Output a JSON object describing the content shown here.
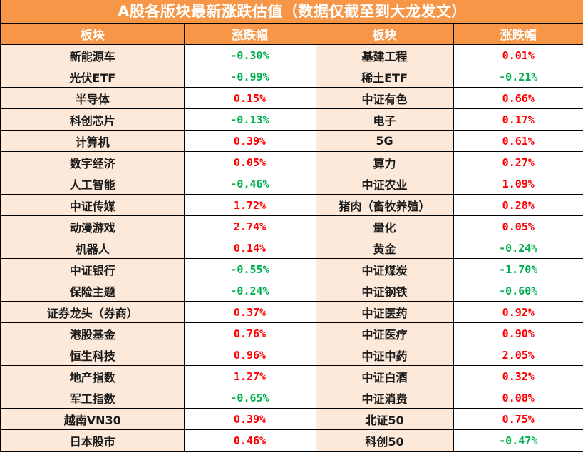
{
  "title": "A股各版块最新涨跌估值（数据仅截至到大龙发文）",
  "headers": [
    "板块",
    "涨跌幅",
    "板块",
    "涨跌幅"
  ],
  "colors": {
    "header_bg": "#f79646",
    "name_bg": "#fde9d9",
    "up": "#ff0000",
    "down": "#00b050"
  },
  "rows": [
    {
      "left_name": "新能源车",
      "left_value": "-0.30%",
      "left_dir": "down",
      "right_name": "基建工程",
      "right_value": "0.01%",
      "right_dir": "up"
    },
    {
      "left_name": "光伏ETF",
      "left_value": "-0.99%",
      "left_dir": "down",
      "right_name": "稀土ETF",
      "right_value": "-0.21%",
      "right_dir": "down"
    },
    {
      "left_name": "半导体",
      "left_value": "0.15%",
      "left_dir": "up",
      "right_name": "中证有色",
      "right_value": "0.66%",
      "right_dir": "up"
    },
    {
      "left_name": "科创芯片",
      "left_value": "-0.13%",
      "left_dir": "down",
      "right_name": "电子",
      "right_value": "0.17%",
      "right_dir": "up"
    },
    {
      "left_name": "计算机",
      "left_value": "0.39%",
      "left_dir": "up",
      "right_name": "5G",
      "right_value": "0.61%",
      "right_dir": "up"
    },
    {
      "left_name": "数字经济",
      "left_value": "0.05%",
      "left_dir": "up",
      "right_name": "算力",
      "right_value": "0.27%",
      "right_dir": "up"
    },
    {
      "left_name": "人工智能",
      "left_value": "-0.46%",
      "left_dir": "down",
      "right_name": "中证农业",
      "right_value": "1.09%",
      "right_dir": "up"
    },
    {
      "left_name": "中证传媒",
      "left_value": "1.72%",
      "left_dir": "up",
      "right_name": "猪肉（畜牧养殖）",
      "right_value": "0.28%",
      "right_dir": "up"
    },
    {
      "left_name": "动漫游戏",
      "left_value": "2.74%",
      "left_dir": "up",
      "right_name": "量化",
      "right_value": "0.05%",
      "right_dir": "up"
    },
    {
      "left_name": "机器人",
      "left_value": "0.14%",
      "left_dir": "up",
      "right_name": "黄金",
      "right_value": "-0.24%",
      "right_dir": "down"
    },
    {
      "left_name": "中证银行",
      "left_value": "-0.55%",
      "left_dir": "down",
      "right_name": "中证煤炭",
      "right_value": "-1.70%",
      "right_dir": "down"
    },
    {
      "left_name": "保险主题",
      "left_value": "-0.24%",
      "left_dir": "down",
      "right_name": "中证钢铁",
      "right_value": "-0.60%",
      "right_dir": "down"
    },
    {
      "left_name": "证券龙头（券商）",
      "left_value": "0.37%",
      "left_dir": "up",
      "right_name": "中证医药",
      "right_value": "0.92%",
      "right_dir": "up"
    },
    {
      "left_name": "港股基金",
      "left_value": "0.76%",
      "left_dir": "up",
      "right_name": "中证医疗",
      "right_value": "0.90%",
      "right_dir": "up"
    },
    {
      "left_name": "恒生科技",
      "left_value": "0.96%",
      "left_dir": "up",
      "right_name": "中证中药",
      "right_value": "2.05%",
      "right_dir": "up"
    },
    {
      "left_name": "地产指数",
      "left_value": "1.27%",
      "left_dir": "up",
      "right_name": "中证白酒",
      "right_value": "0.32%",
      "right_dir": "up"
    },
    {
      "left_name": "军工指数",
      "left_value": "-0.65%",
      "left_dir": "down",
      "right_name": "中证消费",
      "right_value": "0.08%",
      "right_dir": "up"
    },
    {
      "left_name": "越南VN30",
      "left_value": "0.39%",
      "left_dir": "up",
      "right_name": "北证50",
      "right_value": "0.75%",
      "right_dir": "up"
    },
    {
      "left_name": "日本股市",
      "left_value": "0.46%",
      "left_dir": "up",
      "right_name": "科创50",
      "right_value": "-0.47%",
      "right_dir": "down"
    }
  ]
}
